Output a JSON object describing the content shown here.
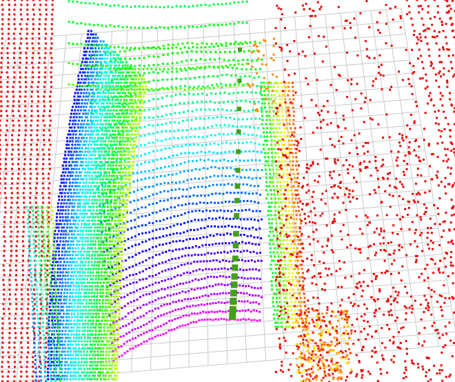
{
  "viewer": {
    "background": "#ffffff",
    "grid_color": "#c8c8c8",
    "ground_grid": "on",
    "colormap": [
      "#ff00ff",
      "#7f00ff",
      "#0000ff",
      "#0080ff",
      "#00ffff",
      "#00ff80",
      "#00ff00",
      "#80ff00",
      "#ffff00",
      "#ff8000",
      "#ff0000"
    ],
    "far_point_color": "#ee0000",
    "marker_color": "#44a018"
  }
}
